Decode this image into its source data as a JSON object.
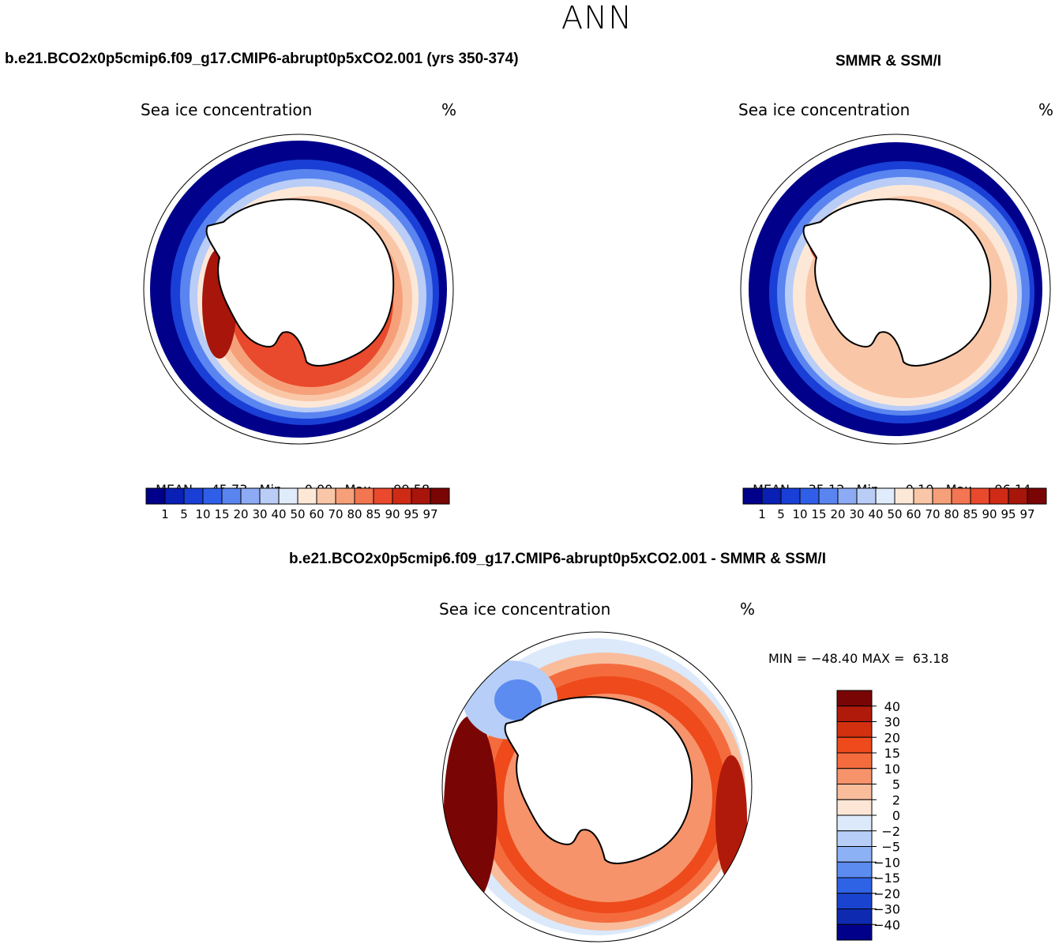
{
  "figure": {
    "season": "ANN"
  },
  "panels": {
    "model": {
      "title": "b.e21.BCO2x0p5cmip6.f09_g17.CMIP6-abrupt0p5xCO2.001 (yrs 350-374)",
      "field": "Sea ice concentration",
      "unit": "%",
      "stats": {
        "mean_label": "MEAN=",
        "mean": "45.73",
        "min_label": "Min=",
        "min": "0.00",
        "max_label": "Max=",
        "max": "99.58"
      }
    },
    "obs": {
      "title": "SMMR & SSM/I",
      "field": "Sea ice concentration",
      "unit": "%",
      "stats": {
        "mean_label": "MEAN=",
        "mean": "35.12",
        "min_label": "Min=",
        "min": "0.10",
        "max_label": "Max=",
        "max": "96.14"
      }
    },
    "diff": {
      "title": "b.e21.BCO2x0p5cmip6.f09_g17.CMIP6-abrupt0p5xCO2.001 - SMMR & SSM/I",
      "field": "Sea ice concentration",
      "unit": "%",
      "minmax_text": "MIN = −48.40 MAX =  63.18"
    }
  },
  "chart_data": [
    {
      "type": "heatmap",
      "name_ref": "model",
      "colorbar": {
        "colors": [
          "#00008b",
          "#0a1fb4",
          "#1a3fd6",
          "#2f5fe8",
          "#5a85f0",
          "#8daaf4",
          "#b9cdf7",
          "#e0ecfb",
          "#fde8d8",
          "#f9c7a8",
          "#f6a07a",
          "#f27651",
          "#e9492c",
          "#cf2a16",
          "#a8150b",
          "#7a0505"
        ],
        "tick_labels": [
          "1",
          "5",
          "10",
          "15",
          "20",
          "30",
          "40",
          "50",
          "60",
          "70",
          "80",
          "85",
          "90",
          "95",
          "97"
        ]
      }
    },
    {
      "type": "heatmap",
      "name_ref": "obs",
      "colorbar": {
        "colors": [
          "#00008b",
          "#0a1fb4",
          "#1a3fd6",
          "#2f5fe8",
          "#5a85f0",
          "#8daaf4",
          "#b9cdf7",
          "#e0ecfb",
          "#fde8d8",
          "#f9c7a8",
          "#f6a07a",
          "#f27651",
          "#e9492c",
          "#cf2a16",
          "#a8150b",
          "#7a0505"
        ],
        "tick_labels": [
          "1",
          "5",
          "10",
          "15",
          "20",
          "30",
          "40",
          "50",
          "60",
          "70",
          "80",
          "85",
          "90",
          "95",
          "97"
        ]
      }
    },
    {
      "type": "heatmap",
      "name_ref": "diff",
      "colorbar": {
        "colors": [
          "#7a0505",
          "#b01a0a",
          "#d2300f",
          "#ee4a1c",
          "#f46c3e",
          "#f6936a",
          "#f9bd9c",
          "#fde6d6",
          "#dbe9fb",
          "#b7cff8",
          "#8cb1f5",
          "#5d8cf0",
          "#2f63e6",
          "#1a44d0",
          "#0d2ab0",
          "#00008b"
        ],
        "tick_labels": [
          "40",
          "30",
          "20",
          "15",
          "10",
          "5",
          "2",
          "0",
          "−2",
          "−5",
          "−10",
          "−15",
          "−20",
          "−30",
          "−40"
        ]
      }
    }
  ],
  "colors": {
    "land": "#ffffff",
    "coastline": "#000000",
    "ocean_low": "#00008b"
  }
}
